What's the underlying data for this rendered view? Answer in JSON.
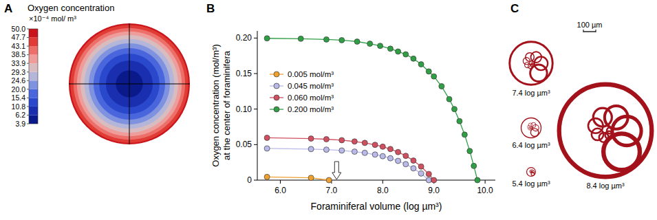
{
  "chart_data": [
    {
      "type": "contour",
      "panel": "A",
      "colorbar": {
        "title": "Oxygen concentration",
        "unit": "×10⁻⁴ mol/ m³",
        "ticks": [
          3.9,
          6.2,
          10.8,
          15.4,
          {
            "value": 20,
            "label": "20.0"
          },
          24.6,
          29.3,
          33.9,
          38.5,
          43.1,
          47.7,
          {
            "value": 50,
            "label": "50.0"
          }
        ],
        "colors": [
          "#0b1a8a",
          "#1a2fb0",
          "#2a48cc",
          "#4a66dd",
          "#7f92e0",
          "#b3b6d8",
          "#d9bcc0",
          "#ee9d9a",
          "#ec6f6a",
          "#e03b35",
          "#c8141a"
        ]
      },
      "rings": {
        "radius": [
          1,
          0.975,
          0.922,
          0.866,
          0.807,
          0.742,
          0.67,
          0.591,
          0.499,
          0.387,
          0.223
        ],
        "values": [
          50,
          47.7,
          43.1,
          38.5,
          33.9,
          29.3,
          24.6,
          20,
          15.4,
          10.8,
          6.2
        ]
      }
    },
    {
      "type": "line",
      "panel": "B",
      "xlabel": "Foraminiferal volume (log µm³)",
      "ylabel": [
        "Oxygen concentration (mol/m³)",
        "at the center of foraminifera"
      ],
      "xlim": [
        5.55,
        10.2
      ],
      "ylim": [
        0,
        0.21
      ],
      "xticks": [
        {
          "value": 6,
          "label": "6.0"
        },
        {
          "value": 7,
          "label": "7.0"
        },
        {
          "value": 8,
          "label": "8.0"
        },
        {
          "value": 9,
          "label": "9.0"
        },
        {
          "value": 10,
          "label": "10.0"
        }
      ],
      "yticks": [
        0,
        0.05,
        {
          "value": 0.1,
          "label": "0.10"
        },
        0.15,
        {
          "value": 0.2,
          "label": "0.20"
        }
      ],
      "grid": false,
      "legend": "left",
      "marker": "circle",
      "series": [
        {
          "name": "0.005 mol/m³",
          "color": "#f0a030",
          "x": [
            5.74,
            6.6,
            6.95
          ],
          "values": [
            0.0045,
            0.0032,
            0
          ]
        },
        {
          "name": "0.045 mol/m³",
          "color": "#b9b9ea",
          "x": [
            5.74,
            6.6,
            6.9,
            7.2,
            7.45,
            7.65,
            7.85,
            8.0,
            8.15,
            8.3,
            8.45,
            8.6,
            8.75,
            8.9
          ],
          "values": [
            0.0446,
            0.0437,
            0.0429,
            0.0417,
            0.0401,
            0.0384,
            0.036,
            0.0337,
            0.0308,
            0.0271,
            0.0225,
            0.0166,
            0.0093,
            0
          ]
        },
        {
          "name": "0.060 mol/m³",
          "color": "#d0505f",
          "x": [
            5.74,
            6.6,
            6.9,
            7.2,
            7.45,
            7.65,
            7.85,
            8.0,
            8.15,
            8.3,
            8.45,
            8.6,
            8.75,
            8.9,
            9.0
          ],
          "values": [
            0.0596,
            0.0585,
            0.0576,
            0.0562,
            0.0544,
            0.0524,
            0.0497,
            0.0471,
            0.0437,
            0.0395,
            0.0342,
            0.0275,
            0.0191,
            0.0085,
            0
          ]
        },
        {
          "name": "0.200 mol/m³",
          "color": "#2f9e44",
          "x": [
            5.74,
            6.4,
            6.9,
            7.2,
            7.5,
            7.75,
            7.95,
            8.15,
            8.3,
            8.45,
            8.6,
            8.75,
            8.9,
            9.0,
            9.15,
            9.3,
            9.4,
            9.5,
            9.6,
            9.7,
            9.78,
            9.85
          ],
          "values": [
            0.1996,
            0.199,
            0.198,
            0.197,
            0.195,
            0.192,
            0.189,
            0.185,
            0.181,
            0.177,
            0.171,
            0.163,
            0.153,
            0.146,
            0.132,
            0.114,
            0.1,
            0.083,
            0.064,
            0.041,
            0.02,
            0
          ]
        }
      ],
      "annotations": [
        {
          "x": 7.1,
          "marker": "arrow"
        }
      ]
    },
    {
      "type": "diagram",
      "panel": "C",
      "scale_bar": {
        "value": 100,
        "label": "100 µm"
      },
      "specimens": [
        {
          "value": 7.4,
          "label": "7.4 log µm³"
        },
        {
          "value": 6.4,
          "label": "6.4 log µm³"
        },
        {
          "value": 5.4,
          "label": "5.4 log µm³"
        },
        {
          "value": 8.4,
          "label": "8.4 log µm³"
        }
      ]
    }
  ]
}
